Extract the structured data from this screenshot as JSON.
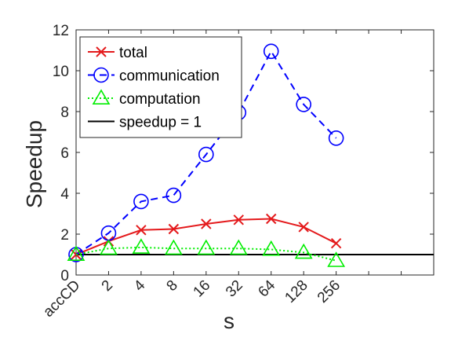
{
  "chart_data": {
    "type": "line",
    "xlabel": "s",
    "ylabel": "Speedup",
    "ylim": [
      0,
      12
    ],
    "yticks": [
      0,
      2,
      4,
      6,
      8,
      10,
      12
    ],
    "categories": [
      "accCD",
      "2",
      "4",
      "8",
      "16",
      "32",
      "64",
      "128",
      "256"
    ],
    "x_extra_ticks": 3,
    "grid": false,
    "legend_position": "top-left",
    "series": [
      {
        "name": "total",
        "color": "#e41a1c",
        "marker": "x",
        "line": "solid",
        "values": [
          1.0,
          1.65,
          2.2,
          2.25,
          2.5,
          2.7,
          2.75,
          2.35,
          1.55
        ]
      },
      {
        "name": "communication",
        "color": "#0000ff",
        "marker": "circle",
        "line": "dashed",
        "values": [
          1.0,
          2.05,
          3.6,
          3.9,
          5.9,
          7.95,
          10.95,
          8.35,
          6.7
        ]
      },
      {
        "name": "computation",
        "color": "#00ee00",
        "marker": "triangle",
        "line": "dotted",
        "values": [
          1.0,
          1.3,
          1.35,
          1.3,
          1.3,
          1.3,
          1.25,
          1.1,
          0.7
        ]
      }
    ],
    "reference_line": {
      "name": "speedup = 1",
      "value": 1,
      "color": "#000000"
    }
  }
}
